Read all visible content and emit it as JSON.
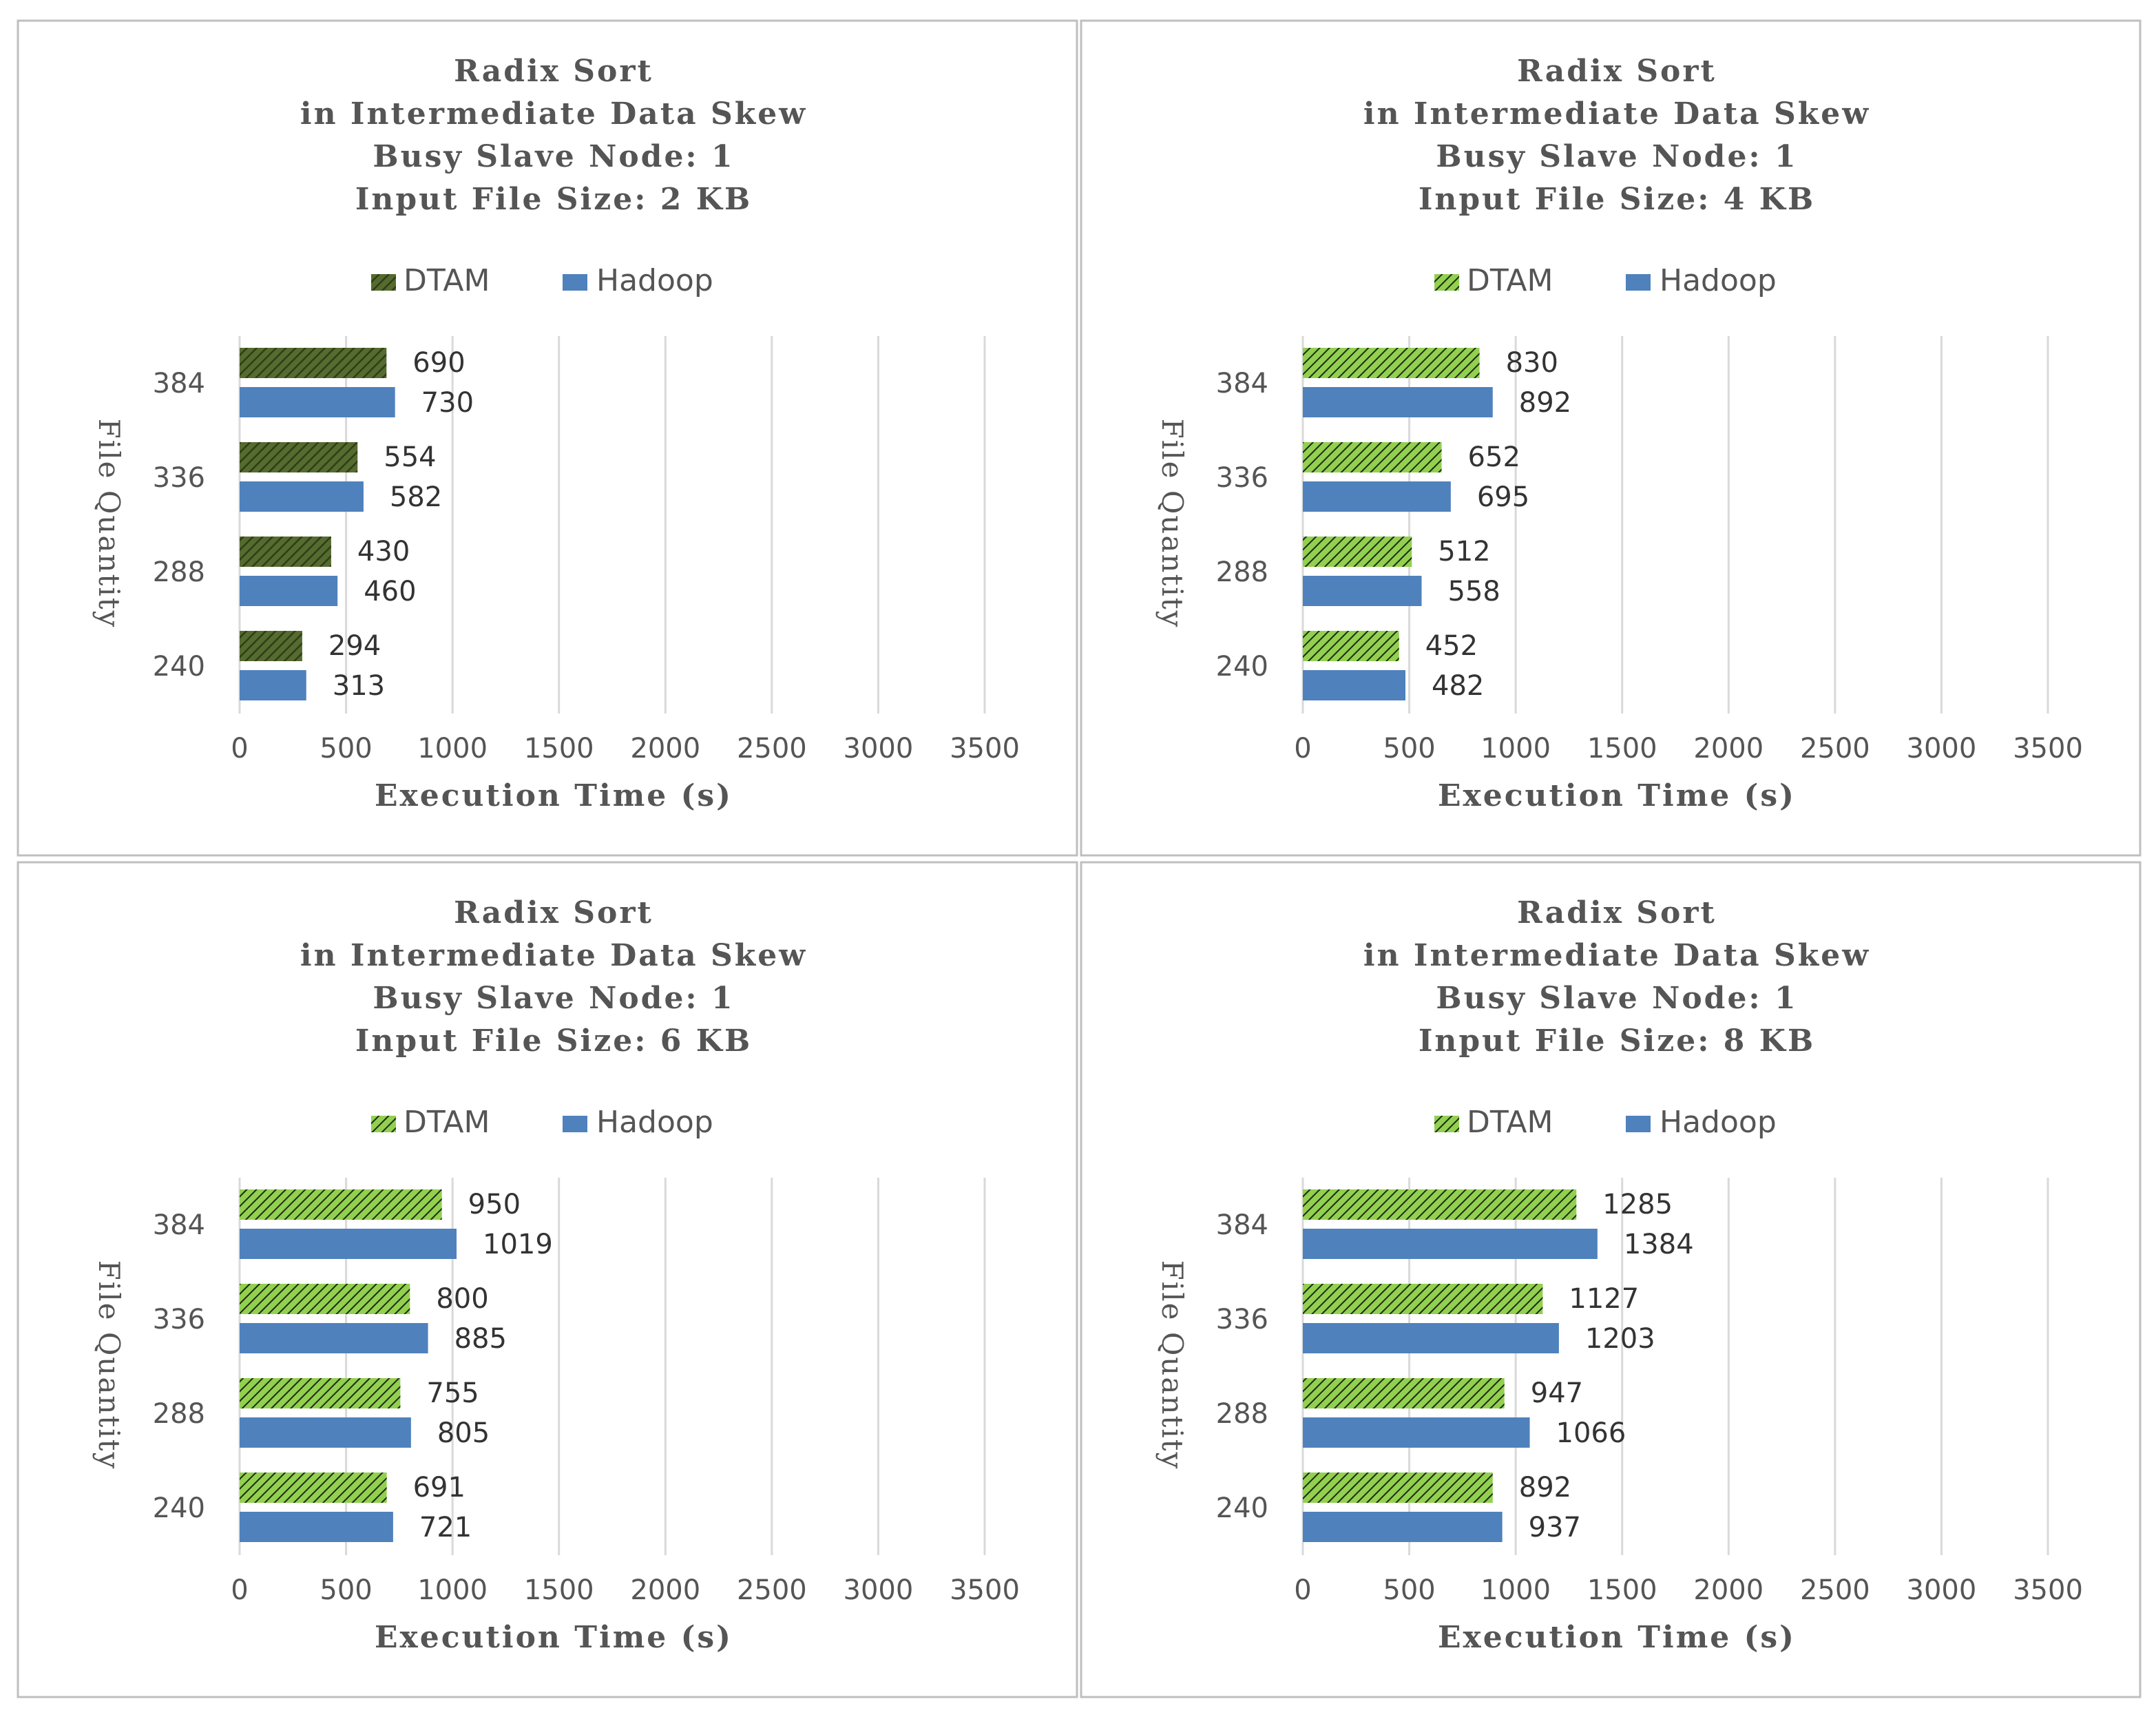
{
  "colors": {
    "dtam_dark": "#556b2f",
    "dtam_light": "#92d050",
    "hadoop": "#4f81bd",
    "grid": "#d9d9d9",
    "border": "#bfbfbf",
    "text": "#555555"
  },
  "chart_data": [
    {
      "type": "bar",
      "orientation": "horizontal",
      "title_lines": [
        "Radix Sort",
        "in Intermediate Data Skew",
        "Busy Slave Node: 1",
        "Input File Size: 2 KB"
      ],
      "categories": [
        "384",
        "336",
        "288",
        "240"
      ],
      "series": [
        {
          "name": "DTAM",
          "values": [
            690,
            554,
            430,
            294
          ]
        },
        {
          "name": "Hadoop",
          "values": [
            730,
            582,
            460,
            313
          ]
        }
      ],
      "xlabel": "Execution Time (s)",
      "ylabel": "File Quantity",
      "xlim": [
        0,
        3500
      ],
      "xticks": [
        "0",
        "500",
        "1000",
        "1500",
        "2000",
        "2500",
        "3000",
        "3500"
      ],
      "legend": "top-center",
      "dtam_pattern": "dark"
    },
    {
      "type": "bar",
      "orientation": "horizontal",
      "title_lines": [
        "Radix Sort",
        "in Intermediate Data Skew",
        "Busy Slave Node: 1",
        "Input File Size: 4 KB"
      ],
      "categories": [
        "384",
        "336",
        "288",
        "240"
      ],
      "series": [
        {
          "name": "DTAM",
          "values": [
            830,
            652,
            512,
            452
          ]
        },
        {
          "name": "Hadoop",
          "values": [
            892,
            695,
            558,
            482
          ]
        }
      ],
      "xlabel": "Execution Time (s)",
      "ylabel": "File Quantity",
      "xlim": [
        0,
        3500
      ],
      "xticks": [
        "0",
        "500",
        "1000",
        "1500",
        "2000",
        "2500",
        "3000",
        "3500"
      ],
      "legend": "top-center",
      "dtam_pattern": "light"
    },
    {
      "type": "bar",
      "orientation": "horizontal",
      "title_lines": [
        "Radix Sort",
        "in Intermediate Data Skew",
        "Busy Slave Node: 1",
        "Input File Size: 6 KB"
      ],
      "categories": [
        "384",
        "336",
        "288",
        "240"
      ],
      "series": [
        {
          "name": "DTAM",
          "values": [
            950,
            800,
            755,
            691
          ]
        },
        {
          "name": "Hadoop",
          "values": [
            1019,
            885,
            805,
            721
          ]
        }
      ],
      "xlabel": "Execution Time (s)",
      "ylabel": "File Quantity",
      "xlim": [
        0,
        3500
      ],
      "xticks": [
        "0",
        "500",
        "1000",
        "1500",
        "2000",
        "2500",
        "3000",
        "3500"
      ],
      "legend": "top-center",
      "dtam_pattern": "light"
    },
    {
      "type": "bar",
      "orientation": "horizontal",
      "title_lines": [
        "Radix Sort",
        "in Intermediate Data Skew",
        "Busy Slave Node: 1",
        "Input File Size: 8 KB"
      ],
      "categories": [
        "384",
        "336",
        "288",
        "240"
      ],
      "series": [
        {
          "name": "DTAM",
          "values": [
            1285,
            1127,
            947,
            892
          ]
        },
        {
          "name": "Hadoop",
          "values": [
            1384,
            1203,
            1066,
            937
          ]
        }
      ],
      "xlabel": "Execution Time (s)",
      "ylabel": "File Quantity",
      "xlim": [
        0,
        3500
      ],
      "xticks": [
        "0",
        "500",
        "1000",
        "1500",
        "2000",
        "2500",
        "3000",
        "3500"
      ],
      "legend": "top-center",
      "dtam_pattern": "light"
    }
  ]
}
